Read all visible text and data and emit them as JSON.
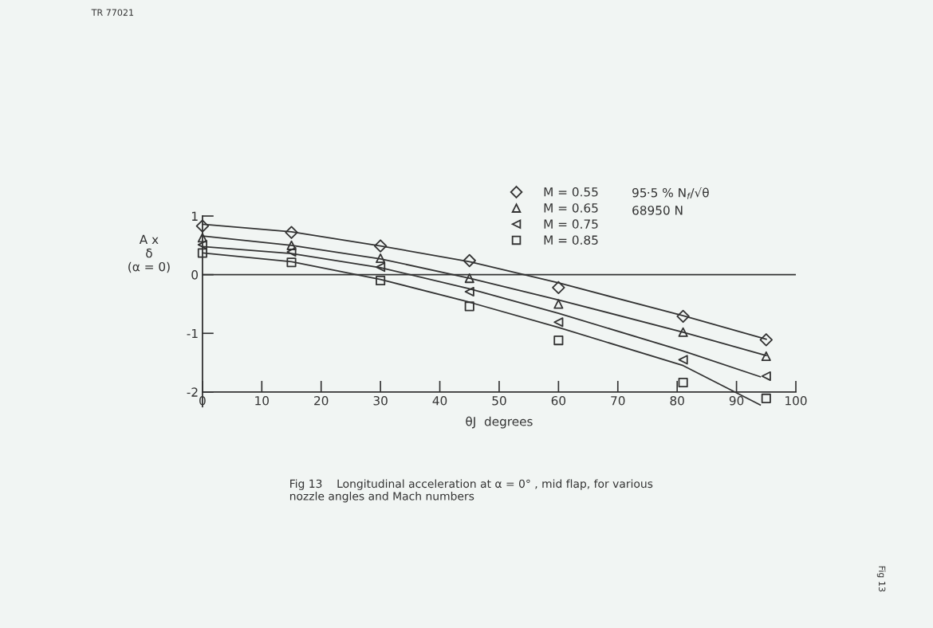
{
  "chart_data": {
    "type": "scatter",
    "title": "Fig 13    Longitudinal acceleration at α = 0° , mid flap, for various\nnozzle angles and Mach numbers",
    "xlabel": "θJ  degrees",
    "ylabel": "A x\nδ\n(α = 0)",
    "x": [
      0,
      15,
      30,
      45,
      60,
      81,
      95
    ],
    "series": [
      {
        "name": "M = 0.55",
        "color": "#333333",
        "marker": "diamond",
        "values": [
          0.83,
          0.72,
          0.49,
          0.24,
          -0.22,
          -0.71,
          -1.11
        ]
      },
      {
        "name": "M = 0.65",
        "color": "#333333",
        "marker": "triangle",
        "values": [
          0.63,
          0.5,
          0.28,
          -0.06,
          -0.5,
          -0.98,
          -1.39
        ]
      },
      {
        "name": "M = 0.75",
        "color": "#333333",
        "marker": "triangle_left",
        "values": [
          0.51,
          0.39,
          0.13,
          -0.29,
          -0.81,
          -1.45,
          -1.73
        ]
      },
      {
        "name": "M = 0.85",
        "color": "#333333",
        "marker": "square",
        "values": [
          0.37,
          0.21,
          -0.1,
          -0.54,
          -1.12,
          -1.84,
          -2.11
        ]
      },
      {
        "type": "line",
        "color": "#333333",
        "x": [
          0,
          15,
          30,
          45,
          60,
          81,
          95
        ],
        "values": [
          0.86,
          0.73,
          0.49,
          0.22,
          -0.14,
          -0.7,
          -1.1
        ]
      },
      {
        "type": "line",
        "color": "#333333",
        "x": [
          0,
          15,
          30,
          45,
          60,
          81,
          95
        ],
        "values": [
          0.66,
          0.5,
          0.27,
          -0.06,
          -0.43,
          -0.98,
          -1.38
        ]
      },
      {
        "type": "line",
        "color": "#333333",
        "x": [
          0,
          15,
          30,
          45,
          60,
          81,
          94
        ],
        "values": [
          0.48,
          0.36,
          0.12,
          -0.24,
          -0.66,
          -1.3,
          -1.74
        ]
      },
      {
        "type": "line",
        "color": "#333333",
        "x": [
          0,
          15,
          30,
          45,
          60,
          81,
          94
        ],
        "values": [
          0.37,
          0.22,
          -0.08,
          -0.47,
          -0.9,
          -1.55,
          -2.22
        ]
      }
    ],
    "xlim": [
      0,
      100
    ],
    "xticks": [
      0,
      10,
      20,
      30,
      40,
      50,
      60,
      70,
      80,
      90,
      100
    ],
    "ylim": [
      -2.25,
      1
    ],
    "yticks": [
      -2,
      -1,
      0,
      1
    ],
    "ref_lines": [
      {
        "axis": "y",
        "value": 0,
        "color": "#333333"
      }
    ],
    "legend": "top",
    "annotations": [
      "95·5 % N$_{f}$/√θ",
      "68950 N",
      "TR 77021",
      "Fig 13"
    ]
  }
}
